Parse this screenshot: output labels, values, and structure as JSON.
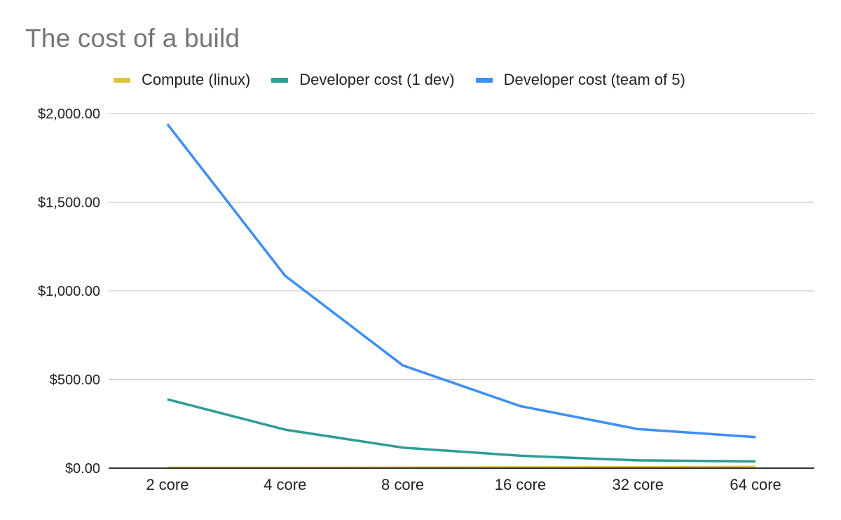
{
  "chart": {
    "title": "The cost of a build",
    "legend": [
      {
        "label": "Compute (linux)",
        "color": "#E0C53C"
      },
      {
        "label": "Developer cost (1 dev)",
        "color": "#2E9D95"
      },
      {
        "label": "Developer cost (team of 5)",
        "color": "#3D8EF7"
      }
    ],
    "y_ticks": [
      "$0.00",
      "$500.00",
      "$1,000.00",
      "$1,500.00",
      "$2,000.00"
    ],
    "x_ticks": [
      "2 core",
      "4 core",
      "8 core",
      "16 core",
      "32 core",
      "64 core"
    ]
  },
  "chart_data": {
    "type": "line",
    "title": "The cost of a build",
    "xlabel": "",
    "ylabel": "",
    "categories": [
      "2 core",
      "4 core",
      "8 core",
      "16 core",
      "32 core",
      "64 core"
    ],
    "series": [
      {
        "name": "Compute (linux)",
        "color": "#E0C53C",
        "values": [
          2,
          2,
          3,
          4,
          5,
          7
        ]
      },
      {
        "name": "Developer cost (1 dev)",
        "color": "#2E9D95",
        "values": [
          388,
          217,
          116,
          70,
          44,
          38
        ]
      },
      {
        "name": "Developer cost (team of 5)",
        "color": "#3D8EF7",
        "values": [
          1940,
          1085,
          580,
          350,
          220,
          175
        ]
      }
    ],
    "ylim": [
      0,
      2000
    ],
    "y_tick_values": [
      0,
      500,
      1000,
      1500,
      2000
    ],
    "grid": true,
    "legend_position": "top"
  }
}
